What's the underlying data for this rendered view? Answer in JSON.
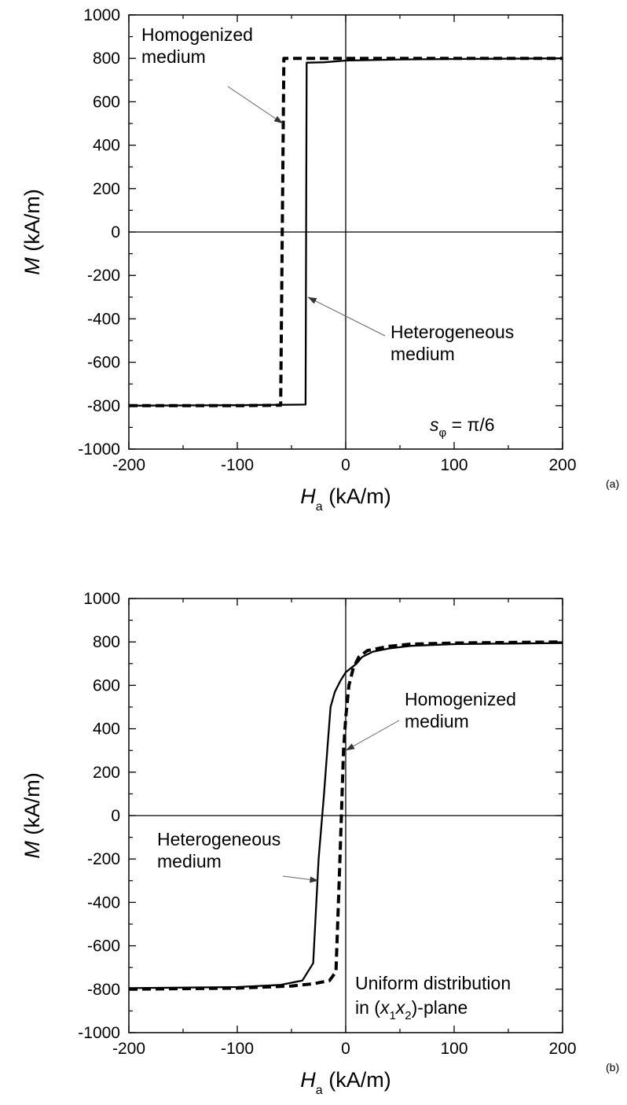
{
  "chart_data": [
    {
      "type": "line",
      "panel_label": "(a)",
      "xlabel": {
        "symbol": "H",
        "subscript": "a",
        "unit": " (kA/m)"
      },
      "ylabel": {
        "symbol": "M",
        "unit": " (kA/m)"
      },
      "xlim": [
        -200,
        200
      ],
      "ylim": [
        -1000,
        1000
      ],
      "x_ticks": [
        -200,
        -100,
        0,
        100,
        200
      ],
      "y_ticks": [
        -1000,
        -800,
        -600,
        -400,
        -200,
        0,
        200,
        400,
        600,
        800,
        1000
      ],
      "grid": false,
      "series": [
        {
          "style": "solid",
          "points": [
            [
              -200,
              -800
            ],
            [
              -100,
              -798
            ],
            [
              -37,
              -795
            ],
            [
              -36,
              780
            ],
            [
              -20,
              782
            ],
            [
              0,
              790
            ],
            [
              50,
              795
            ],
            [
              100,
              797
            ],
            [
              200,
              800
            ]
          ]
        },
        {
          "style": "dashed",
          "points": [
            [
              -200,
              -800
            ],
            [
              -100,
              -800
            ],
            [
              -60,
              -798
            ],
            [
              -57,
              800
            ],
            [
              0,
              800
            ],
            [
              100,
              800
            ],
            [
              200,
              800
            ]
          ]
        }
      ],
      "annotations": [
        {
          "lines": [
            "Homogenized",
            "medium"
          ],
          "arrow_to": [
            -58,
            500
          ],
          "position": "top-left"
        },
        {
          "lines": [
            "Heterogeneous",
            "medium"
          ],
          "arrow_to": [
            -35,
            -300
          ],
          "position": "right"
        },
        {
          "symbol": "s",
          "subscript": "φ",
          "text": " = π/6",
          "position": "bottom-right"
        }
      ]
    },
    {
      "type": "line",
      "panel_label": "(b)",
      "xlabel": {
        "symbol": "H",
        "subscript": "a",
        "unit": " (kA/m)"
      },
      "ylabel": {
        "symbol": "M",
        "unit": " (kA/m)"
      },
      "xlim": [
        -200,
        200
      ],
      "ylim": [
        -1000,
        1000
      ],
      "x_ticks": [
        -200,
        -100,
        0,
        100,
        200
      ],
      "y_ticks": [
        -1000,
        -800,
        -600,
        -400,
        -200,
        0,
        200,
        400,
        600,
        800,
        1000
      ],
      "grid": false,
      "series": [
        {
          "style": "solid",
          "points": [
            [
              -200,
              -795
            ],
            [
              -100,
              -790
            ],
            [
              -60,
              -780
            ],
            [
              -40,
              -760
            ],
            [
              -30,
              -680
            ],
            [
              -25,
              -200
            ],
            [
              -20,
              100
            ],
            [
              -17,
              300
            ],
            [
              -14,
              500
            ],
            [
              -10,
              570
            ],
            [
              -5,
              620
            ],
            [
              0,
              660
            ],
            [
              5,
              680
            ],
            [
              10,
              700
            ],
            [
              15,
              730
            ],
            [
              25,
              755
            ],
            [
              40,
              770
            ],
            [
              60,
              782
            ],
            [
              100,
              790
            ],
            [
              200,
              795
            ]
          ]
        },
        {
          "style": "dashed",
          "points": [
            [
              -200,
              -800
            ],
            [
              -100,
              -795
            ],
            [
              -50,
              -785
            ],
            [
              -30,
              -775
            ],
            [
              -15,
              -760
            ],
            [
              -9,
              -720
            ],
            [
              -6,
              -300
            ],
            [
              -4,
              0
            ],
            [
              -2,
              300
            ],
            [
              0,
              450
            ],
            [
              3,
              600
            ],
            [
              7,
              680
            ],
            [
              12,
              730
            ],
            [
              20,
              760
            ],
            [
              40,
              780
            ],
            [
              60,
              790
            ],
            [
              100,
              795
            ],
            [
              200,
              800
            ]
          ]
        }
      ],
      "annotations": [
        {
          "lines": [
            "Homogenized",
            "medium"
          ],
          "arrow_to": [
            0,
            300
          ],
          "position": "right"
        },
        {
          "lines": [
            "Heterogeneous",
            "medium"
          ],
          "arrow_to": [
            -25,
            -300
          ],
          "position": "left"
        },
        {
          "text": "Uniform distribution",
          "position": "bottom-right"
        },
        {
          "text_parts": [
            "in (",
            "x",
            "1",
            "x",
            "2",
            ")-plane"
          ],
          "position": "bottom-right"
        }
      ]
    }
  ]
}
